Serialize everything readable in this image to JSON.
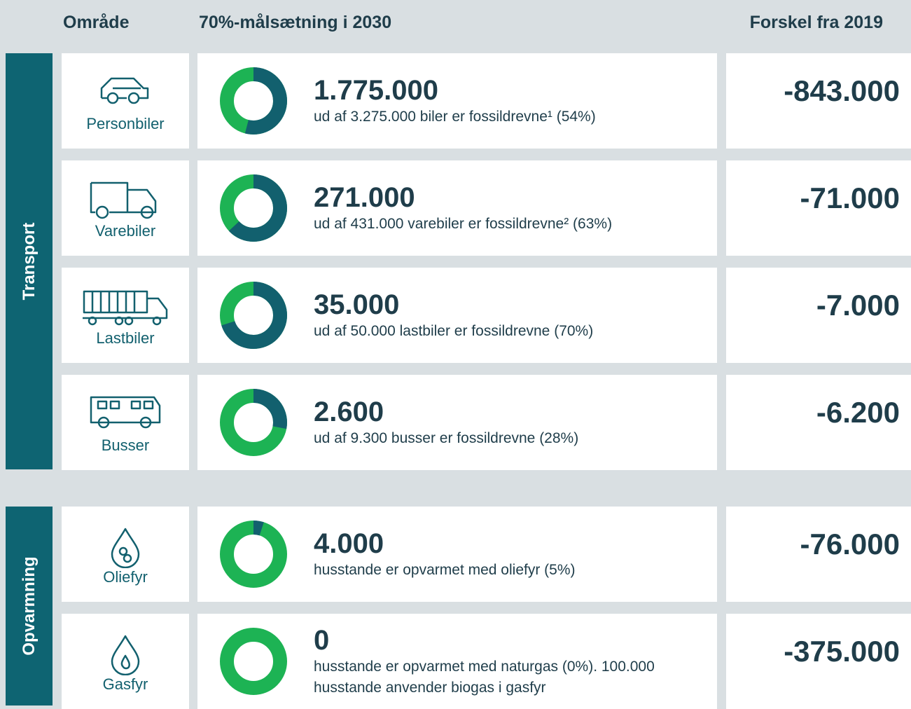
{
  "header": {
    "area": "Område",
    "target": "70%-målsætning i 2030",
    "diff": "Forskel fra 2019"
  },
  "groups": [
    {
      "name": "Transport",
      "rows": [
        {
          "label": "Personbiler",
          "number": "1.775.000",
          "description": "ud af 3.275.000 biler er fossildrevne¹ (54%)",
          "share": 54,
          "diff": "-843.000"
        },
        {
          "label": "Varebiler",
          "number": "271.000",
          "description": "ud af 431.000 varebiler er fossildrevne² (63%)",
          "share": 63,
          "diff": "-71.000"
        },
        {
          "label": "Lastbiler",
          "number": "35.000",
          "description": "ud af 50.000 lastbiler er fossildrevne (70%)",
          "share": 70,
          "diff": "-7.000"
        },
        {
          "label": "Busser",
          "number": "2.600",
          "description": "ud af 9.300 busser er fossildrevne (28%)",
          "share": 28,
          "diff": "-6.200"
        }
      ]
    },
    {
      "name": "Opvarmning",
      "rows": [
        {
          "label": "Oliefyr",
          "number": "4.000",
          "description": "husstande er opvarmet med oliefyr (5%)",
          "share": 5,
          "diff": "-76.000"
        },
        {
          "label": "Gasfyr",
          "number": "0",
          "description": "husstande er opvarmet med naturgas (0%). 100.000 husstande anvender biogas i gasfyr",
          "share": 0,
          "diff": "-375.000"
        }
      ]
    }
  ]
}
